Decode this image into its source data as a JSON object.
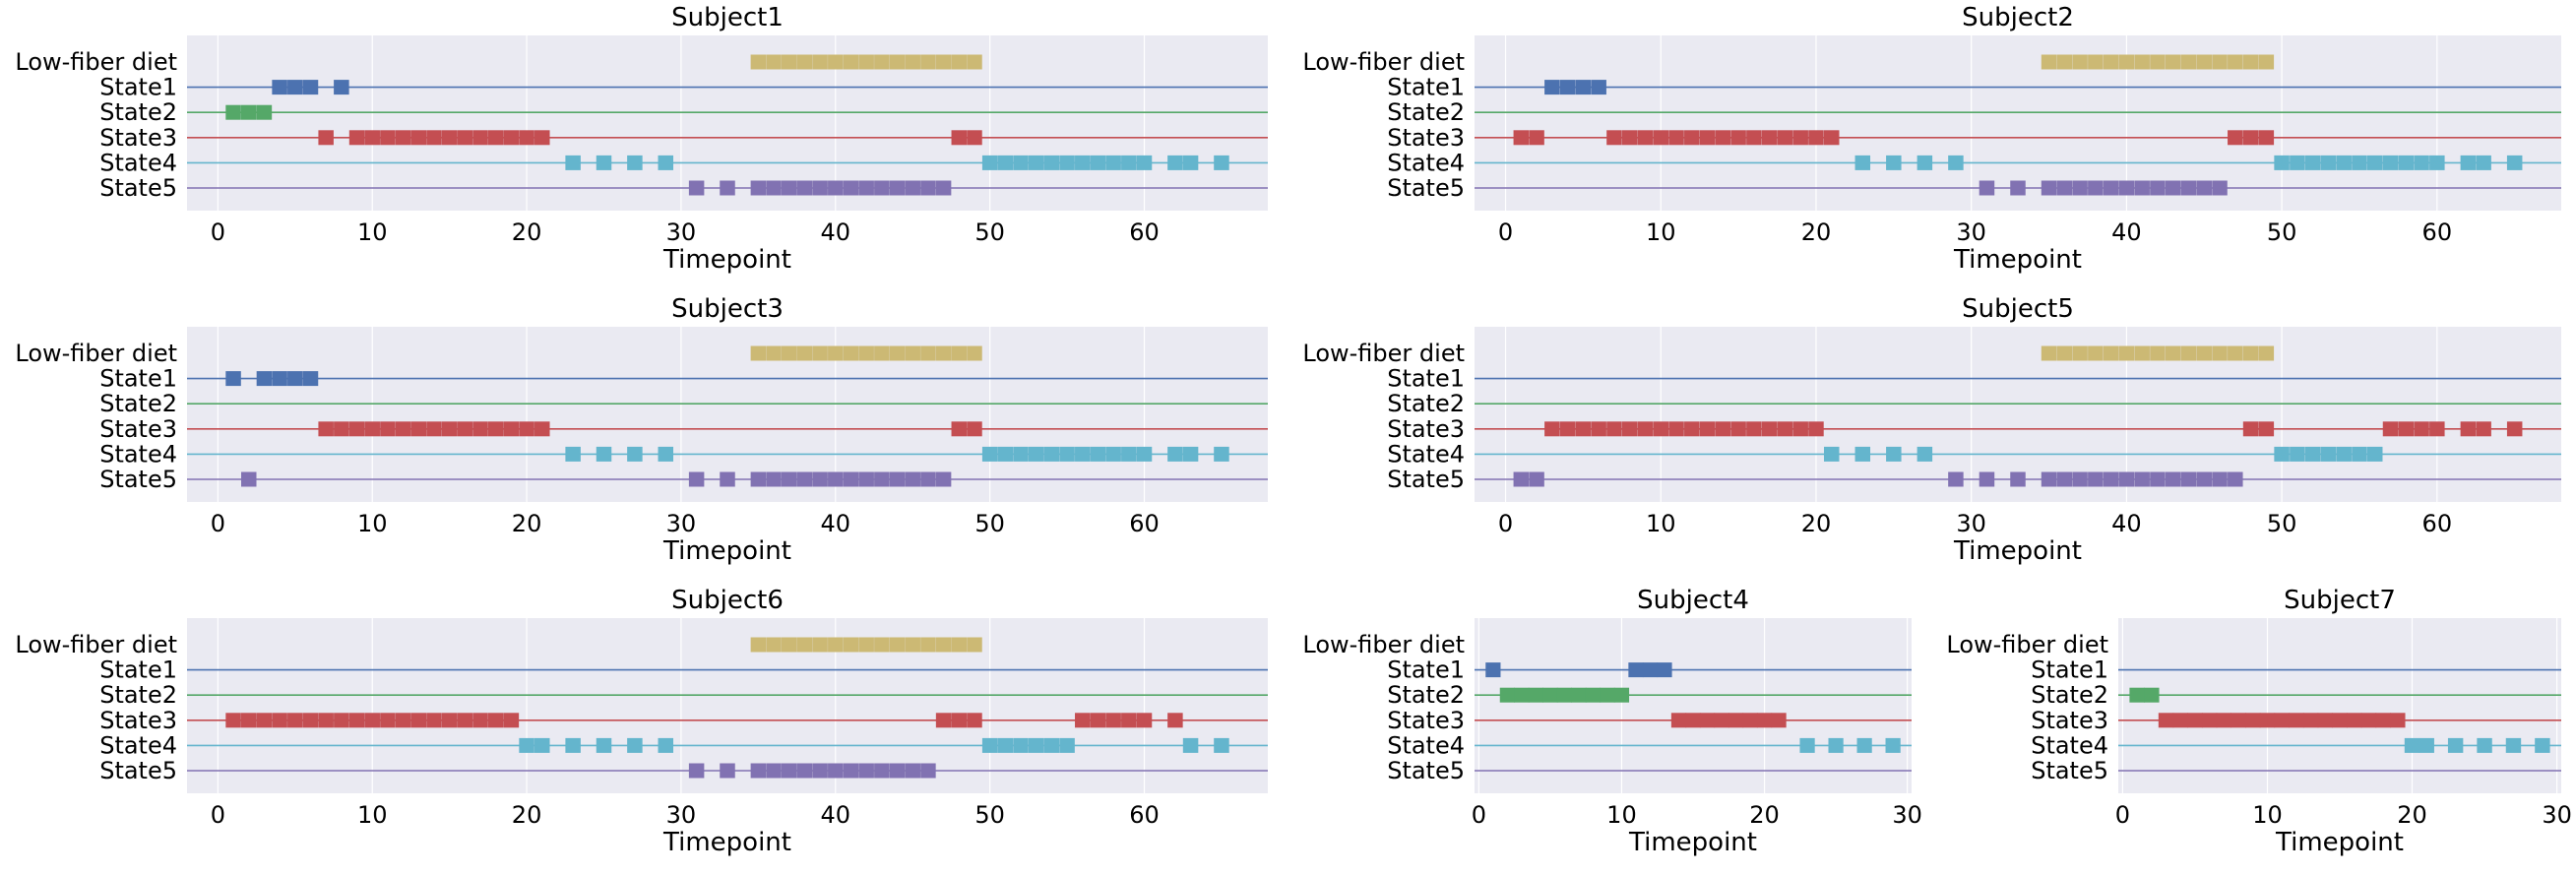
{
  "figure": {
    "state_labels": [
      "Low-fiber diet",
      "State1",
      "State2",
      "State3",
      "State4",
      "State5"
    ],
    "xlabel": "Timepoint",
    "colors": {
      "Low-fiber diet": "#CCB974",
      "State1": "#4C72B0",
      "State2": "#55A868",
      "State3": "#C44E52",
      "State4": "#64B5CD",
      "State5": "#8172B2",
      "background": "#EAEAF2",
      "grid": "#FFFFFF"
    }
  },
  "chart_data": [
    {
      "type": "event-timeline",
      "title": "Subject1",
      "xlabel": "Timepoint",
      "xlim": [
        -2,
        68
      ],
      "xticks": [
        0,
        10,
        20,
        30,
        40,
        50,
        60
      ],
      "rows": [
        "Low-fiber diet",
        "State1",
        "State2",
        "State3",
        "State4",
        "State5"
      ],
      "events": {
        "Low-fiber diet": [
          35,
          36,
          37,
          38,
          39,
          40,
          41,
          42,
          43,
          44,
          45,
          46,
          47,
          48,
          49
        ],
        "State1": [
          4,
          5,
          6,
          8
        ],
        "State2": [
          1,
          2,
          3
        ],
        "State3": [
          7,
          9,
          10,
          11,
          12,
          13,
          14,
          15,
          16,
          17,
          18,
          19,
          20,
          21,
          48,
          49
        ],
        "State4": [
          23,
          25,
          27,
          29,
          50,
          51,
          52,
          53,
          54,
          55,
          56,
          57,
          58,
          59,
          60,
          62,
          63,
          65
        ],
        "State5": [
          31,
          33,
          35,
          36,
          37,
          38,
          39,
          40,
          41,
          42,
          43,
          44,
          45,
          46,
          47
        ]
      }
    },
    {
      "type": "event-timeline",
      "title": "Subject2",
      "xlabel": "Timepoint",
      "xlim": [
        -2,
        68
      ],
      "xticks": [
        0,
        10,
        20,
        30,
        40,
        50,
        60
      ],
      "rows": [
        "Low-fiber diet",
        "State1",
        "State2",
        "State3",
        "State4",
        "State5"
      ],
      "events": {
        "Low-fiber diet": [
          35,
          36,
          37,
          38,
          39,
          40,
          41,
          42,
          43,
          44,
          45,
          46,
          47,
          48,
          49
        ],
        "State1": [
          3,
          4,
          5,
          6
        ],
        "State2": [],
        "State3": [
          1,
          2,
          7,
          8,
          9,
          10,
          11,
          12,
          13,
          14,
          15,
          16,
          17,
          18,
          19,
          20,
          21,
          47,
          48,
          49
        ],
        "State4": [
          23,
          25,
          27,
          29,
          50,
          51,
          52,
          53,
          54,
          55,
          56,
          57,
          58,
          59,
          60,
          62,
          63,
          65
        ],
        "State5": [
          31,
          33,
          35,
          36,
          37,
          38,
          39,
          40,
          41,
          42,
          43,
          44,
          45,
          46
        ]
      }
    },
    {
      "type": "event-timeline",
      "title": "Subject3",
      "xlabel": "Timepoint",
      "xlim": [
        -2,
        68
      ],
      "xticks": [
        0,
        10,
        20,
        30,
        40,
        50,
        60
      ],
      "rows": [
        "Low-fiber diet",
        "State1",
        "State2",
        "State3",
        "State4",
        "State5"
      ],
      "events": {
        "Low-fiber diet": [
          35,
          36,
          37,
          38,
          39,
          40,
          41,
          42,
          43,
          44,
          45,
          46,
          47,
          48,
          49
        ],
        "State1": [
          1,
          3,
          4,
          5,
          6
        ],
        "State2": [],
        "State3": [
          7,
          8,
          9,
          10,
          11,
          12,
          13,
          14,
          15,
          16,
          17,
          18,
          19,
          20,
          21,
          48,
          49
        ],
        "State4": [
          23,
          25,
          27,
          29,
          50,
          51,
          52,
          53,
          54,
          55,
          56,
          57,
          58,
          59,
          60,
          62,
          63,
          65
        ],
        "State5": [
          2,
          31,
          33,
          35,
          36,
          37,
          38,
          39,
          40,
          41,
          42,
          43,
          44,
          45,
          46,
          47
        ]
      }
    },
    {
      "type": "event-timeline",
      "title": "Subject5",
      "xlabel": "Timepoint",
      "xlim": [
        -2,
        68
      ],
      "xticks": [
        0,
        10,
        20,
        30,
        40,
        50,
        60
      ],
      "rows": [
        "Low-fiber diet",
        "State1",
        "State2",
        "State3",
        "State4",
        "State5"
      ],
      "events": {
        "Low-fiber diet": [
          35,
          36,
          37,
          38,
          39,
          40,
          41,
          42,
          43,
          44,
          45,
          46,
          47,
          48,
          49
        ],
        "State1": [],
        "State2": [],
        "State3": [
          3,
          4,
          5,
          6,
          7,
          8,
          9,
          10,
          11,
          12,
          13,
          14,
          15,
          16,
          17,
          18,
          19,
          20,
          48,
          49,
          57,
          58,
          59,
          60,
          62,
          63,
          65
        ],
        "State4": [
          21,
          23,
          25,
          27,
          50,
          51,
          52,
          53,
          54,
          55,
          56
        ],
        "State5": [
          1,
          2,
          29,
          31,
          33,
          35,
          36,
          37,
          38,
          39,
          40,
          41,
          42,
          43,
          44,
          45,
          46,
          47
        ]
      }
    },
    {
      "type": "event-timeline",
      "title": "Subject6",
      "xlabel": "Timepoint",
      "xlim": [
        -2,
        68
      ],
      "xticks": [
        0,
        10,
        20,
        30,
        40,
        50,
        60
      ],
      "rows": [
        "Low-fiber diet",
        "State1",
        "State2",
        "State3",
        "State4",
        "State5"
      ],
      "events": {
        "Low-fiber diet": [
          35,
          36,
          37,
          38,
          39,
          40,
          41,
          42,
          43,
          44,
          45,
          46,
          47,
          48,
          49
        ],
        "State1": [],
        "State2": [],
        "State3": [
          1,
          2,
          3,
          4,
          5,
          6,
          7,
          8,
          9,
          10,
          11,
          12,
          13,
          14,
          15,
          16,
          17,
          18,
          19,
          47,
          48,
          49,
          56,
          57,
          58,
          59,
          60,
          62
        ],
        "State4": [
          20,
          21,
          23,
          25,
          27,
          29,
          50,
          51,
          52,
          53,
          54,
          55,
          63,
          65
        ],
        "State5": [
          31,
          33,
          35,
          36,
          37,
          38,
          39,
          40,
          41,
          42,
          43,
          44,
          45,
          46
        ]
      }
    },
    {
      "type": "event-timeline",
      "title": "Subject4",
      "xlabel": "Timepoint",
      "xlim": [
        -0.3,
        30.3
      ],
      "xticks": [
        0,
        10,
        20,
        30
      ],
      "rows": [
        "Low-fiber diet",
        "State1",
        "State2",
        "State3",
        "State4",
        "State5"
      ],
      "events": {
        "Low-fiber diet": [],
        "State1": [
          1,
          11,
          12,
          13
        ],
        "State2": [
          2,
          3,
          4,
          5,
          6,
          7,
          8,
          9,
          10
        ],
        "State3": [
          14,
          15,
          16,
          17,
          18,
          19,
          20,
          21
        ],
        "State4": [
          23,
          25,
          27,
          29
        ],
        "State5": []
      }
    },
    {
      "type": "event-timeline",
      "title": "Subject7",
      "xlabel": "Timepoint",
      "xlim": [
        -0.3,
        30.3
      ],
      "xticks": [
        0,
        10,
        20,
        30
      ],
      "rows": [
        "Low-fiber diet",
        "State1",
        "State2",
        "State3",
        "State4",
        "State5"
      ],
      "events": {
        "Low-fiber diet": [],
        "State1": [],
        "State2": [
          1,
          2
        ],
        "State3": [
          3,
          4,
          5,
          6,
          7,
          8,
          9,
          10,
          11,
          12,
          13,
          14,
          15,
          16,
          17,
          18,
          19
        ],
        "State4": [
          20,
          21,
          23,
          25,
          27,
          29
        ],
        "State5": []
      }
    }
  ]
}
